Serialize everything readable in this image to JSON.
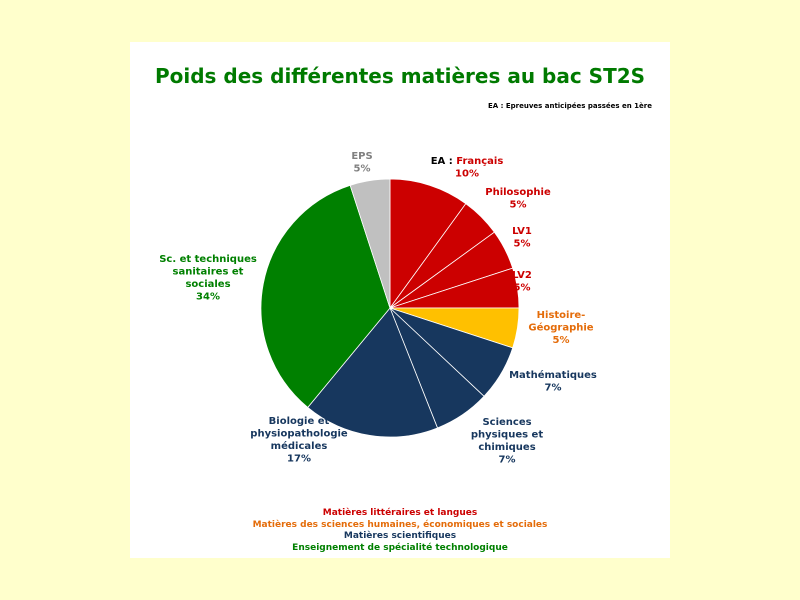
{
  "chart_data": {
    "type": "pie",
    "title": "Poids des différentes matières au bac ST2S",
    "note": "EA : Epreuves anticipées passées en 1ère",
    "slices": [
      {
        "label": "EA : Français",
        "label_prefix": "EA :",
        "label_main": "Français",
        "value": 10,
        "pct": "10%",
        "color": "#cc0000",
        "text_color": "#cc0000"
      },
      {
        "label": "Philosophie",
        "value": 5,
        "pct": "5%",
        "color": "#cc0000",
        "text_color": "#cc0000"
      },
      {
        "label": "LV1",
        "value": 5,
        "pct": "5%",
        "color": "#cc0000",
        "text_color": "#cc0000"
      },
      {
        "label": "LV2",
        "value": 5,
        "pct": "5%",
        "color": "#cc0000",
        "text_color": "#cc0000"
      },
      {
        "label": "Histoire-Géographie",
        "lines": [
          "Histoire-",
          "Géographie"
        ],
        "value": 5,
        "pct": "5%",
        "color": "#ffc000",
        "text_color": "#e46c0a"
      },
      {
        "label": "Mathématiques",
        "value": 7,
        "pct": "7%",
        "color": "#17375e",
        "text_color": "#17375e"
      },
      {
        "label": "Sciences physiques et chimiques",
        "lines": [
          "Sciences",
          "physiques et",
          "chimiques"
        ],
        "value": 7,
        "pct": "7%",
        "color": "#17375e",
        "text_color": "#17375e"
      },
      {
        "label": "Biologie et physiopathologie médicales",
        "lines": [
          "Biologie et",
          "physiopathologie",
          "médicales"
        ],
        "value": 17,
        "pct": "17%",
        "color": "#17375e",
        "text_color": "#17375e"
      },
      {
        "label": "Sc. et techniques sanitaires et sociales",
        "lines": [
          "Sc. et techniques",
          "sanitaires et",
          "sociales"
        ],
        "value": 34,
        "pct": "34%",
        "color": "#008000",
        "text_color": "#008000"
      },
      {
        "label": "EPS",
        "value": 5,
        "pct": "5%",
        "color": "#c0c0c0",
        "text_color": "#808080"
      }
    ],
    "legend": [
      {
        "text": "Matières littéraires et langues",
        "color": "#cc0000"
      },
      {
        "text": "Matières des sciences humaines, économiques et sociales",
        "color": "#e46c0a"
      },
      {
        "text": "Matières scientifiques",
        "color": "#17375e"
      },
      {
        "text": "Enseignement de spécialité technologique",
        "color": "#008000"
      }
    ]
  }
}
